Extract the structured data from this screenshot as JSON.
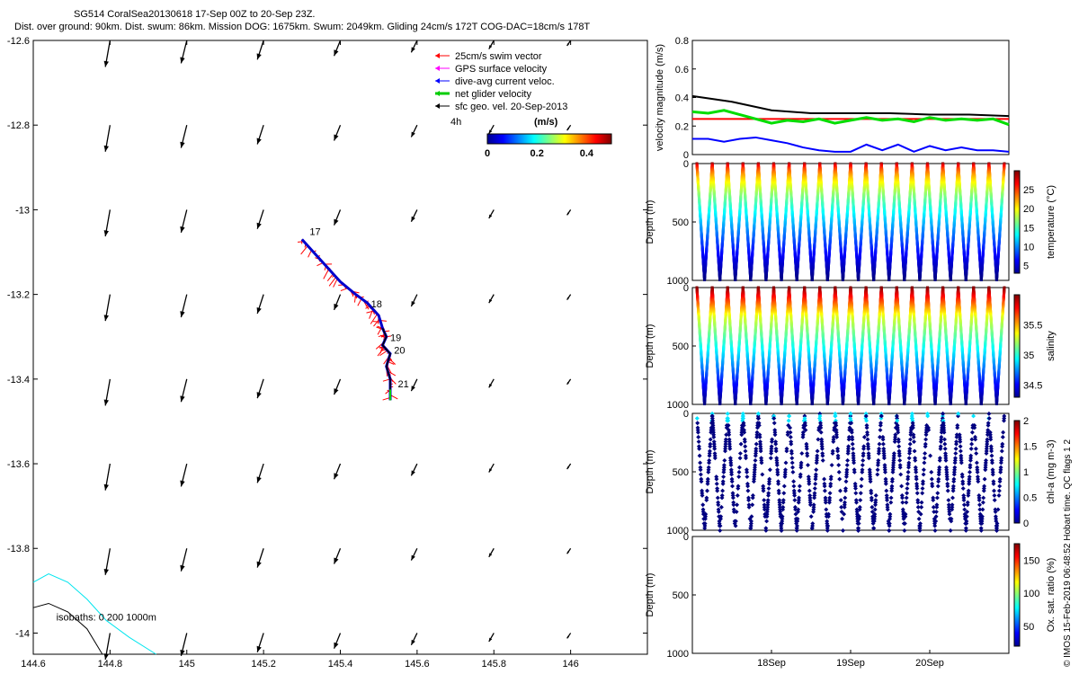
{
  "header": {
    "line1": "SG514 CoralSea20130618 17-Sep 00Z to 20-Sep 23Z.",
    "line2": "Dist. over ground: 90km. Dist. swum: 86km. Mission DOG: 1675km. Swum: 2049km. Gliding 24cm/s 172T COG-DAC=18cm/s 178T"
  },
  "footer_text": "© IMOS 15-Feb-2019 06:48:52 Hobart time. QC flags 1  2",
  "chart_data": [
    {
      "id": "map",
      "type": "scatter",
      "xlim": [
        144.6,
        146.2
      ],
      "ylim": [
        -14.05,
        -12.6
      ],
      "xticks": [
        "144.6",
        "144.8",
        "145",
        "145.2",
        "145.4",
        "145.6",
        "145.8",
        "146"
      ],
      "yticks": [
        "-12.6",
        "-12.8",
        "-13",
        "-13.2",
        "-13.4",
        "-13.6",
        "-13.8",
        "-14"
      ],
      "legend": {
        "placement": "top-right",
        "entries": [
          {
            "label": "25cm/s swim vector",
            "color": "#ff0000"
          },
          {
            "label": "GPS surface velocity",
            "color": "#ff00ff"
          },
          {
            "label": "dive-avg current veloc.",
            "color": "#0000ff"
          },
          {
            "label": "net glider velocity",
            "color": "#00cc00"
          },
          {
            "label": "sfc geo. vel. 20-Sep-2013",
            "color": "#000000"
          }
        ]
      },
      "colorbar": {
        "label": "(m/s)",
        "ticks": [
          "0",
          "0.2",
          "0.4"
        ],
        "range": [
          0,
          0.5
        ]
      },
      "scale_label": "4h",
      "day_labels": [
        {
          "text": "17",
          "lon": 145.32,
          "lat": -13.06
        },
        {
          "text": "18",
          "lon": 145.48,
          "lat": -13.23
        },
        {
          "text": "19",
          "lon": 145.53,
          "lat": -13.31
        },
        {
          "text": "20",
          "lon": 145.54,
          "lat": -13.34
        },
        {
          "text": "21",
          "lon": 145.55,
          "lat": -13.42
        }
      ],
      "track": [
        [
          145.3,
          -13.07
        ],
        [
          145.34,
          -13.11
        ],
        [
          145.37,
          -13.14
        ],
        [
          145.4,
          -13.17
        ],
        [
          145.44,
          -13.2
        ],
        [
          145.47,
          -13.22
        ],
        [
          145.5,
          -13.25
        ],
        [
          145.51,
          -13.28
        ],
        [
          145.52,
          -13.3
        ],
        [
          145.51,
          -13.32
        ],
        [
          145.53,
          -13.34
        ],
        [
          145.52,
          -13.37
        ],
        [
          145.53,
          -13.4
        ],
        [
          145.53,
          -13.45
        ]
      ],
      "arrow_lons": [
        144.8,
        145.0,
        145.2,
        145.4,
        145.6,
        145.8,
        146.0
      ],
      "arrow_lats": [
        -12.6,
        -12.8,
        -13.0,
        -13.2,
        -13.4,
        -13.6,
        -13.8,
        -14.0
      ],
      "isobath_label": "isobaths: 0   200  1000m",
      "isobaths": [
        {
          "depth": "0",
          "color": "#00e5ee",
          "points": [
            [
              144.6,
              -13.88
            ],
            [
              144.64,
              -13.86
            ],
            [
              144.69,
              -13.88
            ],
            [
              144.74,
              -13.92
            ],
            [
              144.79,
              -13.97
            ],
            [
              144.85,
              -14.01
            ],
            [
              144.92,
              -14.05
            ]
          ]
        },
        {
          "depth": "200",
          "color": "#000000",
          "points": [
            [
              144.6,
              -13.94
            ],
            [
              144.64,
              -13.93
            ],
            [
              144.69,
              -13.95
            ],
            [
              144.74,
              -13.99
            ],
            [
              144.78,
              -14.05
            ]
          ]
        }
      ]
    },
    {
      "id": "velocity",
      "type": "line",
      "ylabel": "velocity magnitude (m/s)",
      "ylim": [
        0,
        0.8
      ],
      "yticks": [
        "0",
        "0.2",
        "0.4",
        "0.6",
        "0.8"
      ],
      "xlim": [
        17,
        21
      ],
      "xticks": [
        "18Sep",
        "19Sep",
        "20Sep"
      ],
      "series": [
        {
          "color": "#000000",
          "x": [
            17,
            17.5,
            18,
            18.5,
            19,
            19.5,
            20,
            20.5,
            21
          ],
          "values": [
            0.41,
            0.37,
            0.31,
            0.29,
            0.29,
            0.29,
            0.28,
            0.28,
            0.27
          ]
        },
        {
          "color": "#ff0000",
          "x": [
            17,
            21
          ],
          "values": [
            0.25,
            0.25
          ]
        },
        {
          "color": "#0000ff",
          "x": [
            17,
            17.2,
            17.4,
            17.6,
            17.8,
            18,
            18.2,
            18.4,
            18.6,
            18.8,
            19,
            19.2,
            19.4,
            19.6,
            19.8,
            20,
            20.2,
            20.4,
            20.6,
            20.8,
            21
          ],
          "values": [
            0.11,
            0.11,
            0.09,
            0.11,
            0.12,
            0.1,
            0.08,
            0.05,
            0.03,
            0.02,
            0.02,
            0.07,
            0.03,
            0.07,
            0.02,
            0.06,
            0.03,
            0.05,
            0.03,
            0.03,
            0.02
          ]
        },
        {
          "color": "#00dd00",
          "x": [
            17,
            17.2,
            17.4,
            17.6,
            17.8,
            18,
            18.2,
            18.4,
            18.6,
            18.8,
            19,
            19.2,
            19.4,
            19.6,
            19.8,
            20,
            20.2,
            20.4,
            20.6,
            20.8,
            21
          ],
          "values": [
            0.3,
            0.29,
            0.31,
            0.28,
            0.25,
            0.22,
            0.24,
            0.23,
            0.25,
            0.22,
            0.24,
            0.26,
            0.24,
            0.25,
            0.23,
            0.26,
            0.24,
            0.25,
            0.24,
            0.25,
            0.21
          ]
        }
      ]
    },
    {
      "id": "temperature",
      "type": "scatter",
      "ylabel": "Depth (m)",
      "ylim": [
        1000,
        0
      ],
      "yticks": [
        "0",
        "500",
        "1000"
      ],
      "xlim": [
        17,
        21
      ],
      "cycles": 20,
      "colorbar": {
        "label": "temperature (°C)",
        "ticks": [
          "5",
          "10",
          "15",
          "20",
          "25"
        ],
        "range": [
          3,
          30
        ]
      }
    },
    {
      "id": "salinity",
      "type": "scatter",
      "ylabel": "Depth (m)",
      "ylim": [
        1000,
        0
      ],
      "yticks": [
        "0",
        "500",
        "1000"
      ],
      "xlim": [
        17,
        21
      ],
      "cycles": 20,
      "colorbar": {
        "label": "salinity",
        "ticks": [
          "34.5",
          "35",
          "35.5"
        ],
        "range": [
          34.3,
          36.0
        ]
      }
    },
    {
      "id": "chla",
      "type": "scatter",
      "ylabel": "Depth (m)",
      "ylim": [
        1000,
        0
      ],
      "yticks": [
        "0",
        "500",
        "1000"
      ],
      "xlim": [
        17,
        21
      ],
      "cycles": 20,
      "colorbar": {
        "label": "chl-a (mg m-3)",
        "ticks": [
          "0",
          "0.5",
          "1",
          "1.5",
          "2"
        ],
        "range": [
          0,
          2
        ]
      }
    },
    {
      "id": "oxygen",
      "type": "scatter",
      "ylabel": "Depth (m)",
      "ylim": [
        1000,
        0
      ],
      "yticks": [
        "0",
        "500",
        "1000"
      ],
      "xlim": [
        17,
        21
      ],
      "xticks": [
        "18Sep",
        "19Sep",
        "20Sep"
      ],
      "colorbar": {
        "label": "Ox. sat. ratio (%)",
        "ticks": [
          "50",
          "100",
          "150"
        ],
        "range": [
          20,
          175
        ]
      }
    }
  ]
}
